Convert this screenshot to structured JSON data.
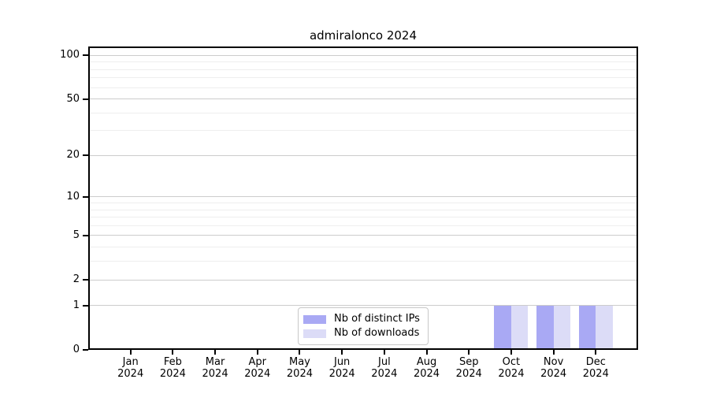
{
  "chart_data": {
    "type": "bar",
    "title": "admiralonco 2024",
    "x_axis": {
      "months": [
        "Jan",
        "Feb",
        "Mar",
        "Apr",
        "May",
        "Jun",
        "Jul",
        "Aug",
        "Sep",
        "Oct",
        "Nov",
        "Dec"
      ],
      "year": "2024"
    },
    "y_axis": {
      "scale": "log1p",
      "major_ticks": [
        0,
        1,
        2,
        5,
        10,
        20,
        50,
        100
      ],
      "minor_ticks": [
        3,
        4,
        6,
        7,
        8,
        9,
        30,
        40,
        60,
        70,
        80,
        90
      ],
      "ylim": [
        0,
        112
      ]
    },
    "series": [
      {
        "name": "Nb of distinct IPs",
        "color": "#a9a9f4",
        "values": [
          0,
          0,
          0,
          0,
          0,
          0,
          0,
          0,
          0,
          1,
          1,
          1
        ]
      },
      {
        "name": "Nb of downloads",
        "color": "#dcdcf7",
        "values": [
          0,
          0,
          0,
          0,
          0,
          0,
          0,
          0,
          0,
          1,
          1,
          1
        ]
      }
    ],
    "legend": {
      "position": "lower center inside",
      "entries": [
        "Nb of distinct IPs",
        "Nb of downloads"
      ]
    },
    "grid": {
      "major_color": "#cccccc",
      "minor_color": "#eeeeee"
    }
  }
}
